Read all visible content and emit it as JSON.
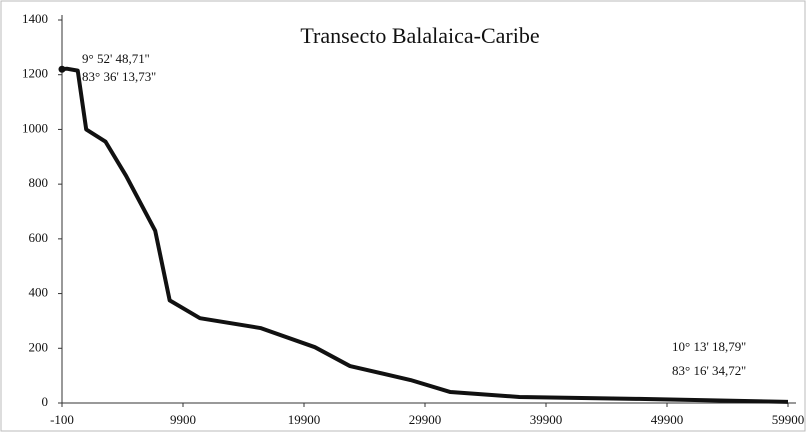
{
  "chart_data": {
    "type": "line",
    "title": "Transecto Balalaica-Caribe",
    "x": [
      -100,
      300,
      1200,
      1900,
      3500,
      5200,
      7600,
      8800,
      11300,
      16300,
      20800,
      23700,
      28700,
      32000,
      37700,
      47600,
      59900
    ],
    "series": [
      {
        "name": "Transecto",
        "color": "#111111",
        "values": [
          1220,
          1222,
          1215,
          1000,
          955,
          830,
          630,
          375,
          310,
          274,
          204,
          135,
          84,
          40,
          22,
          15,
          4
        ]
      }
    ],
    "xlim": [
      -100,
      59900
    ],
    "xticks": [
      -100,
      9900,
      19900,
      29900,
      39900,
      49900,
      59900
    ],
    "ylim": [
      0,
      1400
    ],
    "yticks": [
      0,
      200,
      400,
      600,
      800,
      1000,
      1200,
      1400
    ],
    "annotations": [
      {
        "lines": [
          "9° 52' 48,71''",
          "83° 36' 13,73''"
        ]
      },
      {
        "lines": [
          "10° 13' 18,79''",
          "83° 16' 34,72''"
        ]
      }
    ]
  }
}
